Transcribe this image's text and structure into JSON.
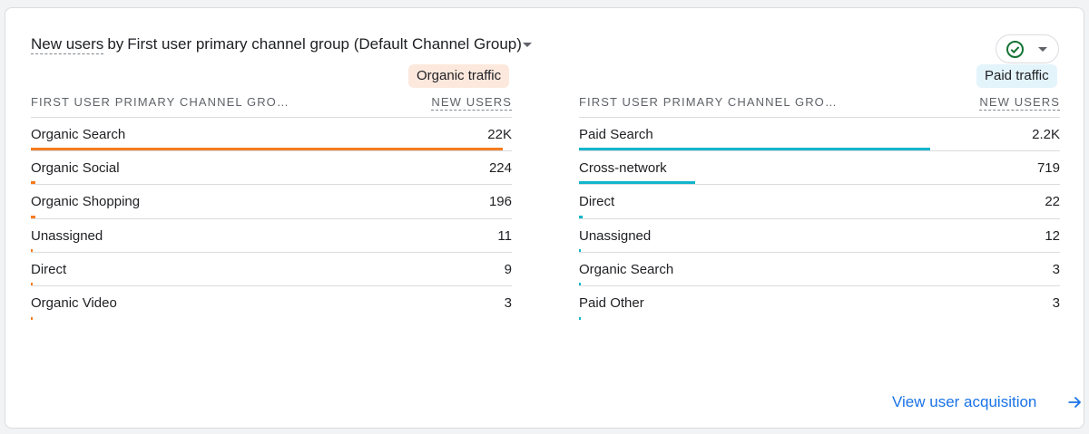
{
  "card": {
    "title_metric": "New users",
    "title_by": "by",
    "title_dimension": "First user primary channel group (Default Channel Group)",
    "compare_icon": "check-circle-icon",
    "view_link": "View user acquisition",
    "link_icon": "arrow-right-icon"
  },
  "panels": [
    {
      "chip": "Organic traffic",
      "bar_color": "#f57c1f",
      "col_dimension": "FIRST USER PRIMARY CHANNEL GRO…",
      "col_metric": "NEW USERS",
      "rows": [
        {
          "label": "Organic Search",
          "value": "22K",
          "fraction": 1.0
        },
        {
          "label": "Organic Social",
          "value": "224",
          "fraction": 0.0102
        },
        {
          "label": "Organic Shopping",
          "value": "196",
          "fraction": 0.0089
        },
        {
          "label": "Unassigned",
          "value": "11",
          "fraction": 0.0005
        },
        {
          "label": "Direct",
          "value": "9",
          "fraction": 0.0004
        },
        {
          "label": "Organic Video",
          "value": "3",
          "fraction": 0.0001
        }
      ]
    },
    {
      "chip": "Paid traffic",
      "bar_color": "#12b5cb",
      "col_dimension": "FIRST USER PRIMARY CHANNEL GRO…",
      "col_metric": "NEW USERS",
      "rows": [
        {
          "label": "Paid Search",
          "value": "2.2K",
          "fraction": 0.745
        },
        {
          "label": "Cross-network",
          "value": "719",
          "fraction": 0.247
        },
        {
          "label": "Direct",
          "value": "22",
          "fraction": 0.0075
        },
        {
          "label": "Unassigned",
          "value": "12",
          "fraction": 0.0041
        },
        {
          "label": "Organic Search",
          "value": "3",
          "fraction": 0.001
        },
        {
          "label": "Paid Other",
          "value": "3",
          "fraction": 0.001
        }
      ]
    }
  ]
}
